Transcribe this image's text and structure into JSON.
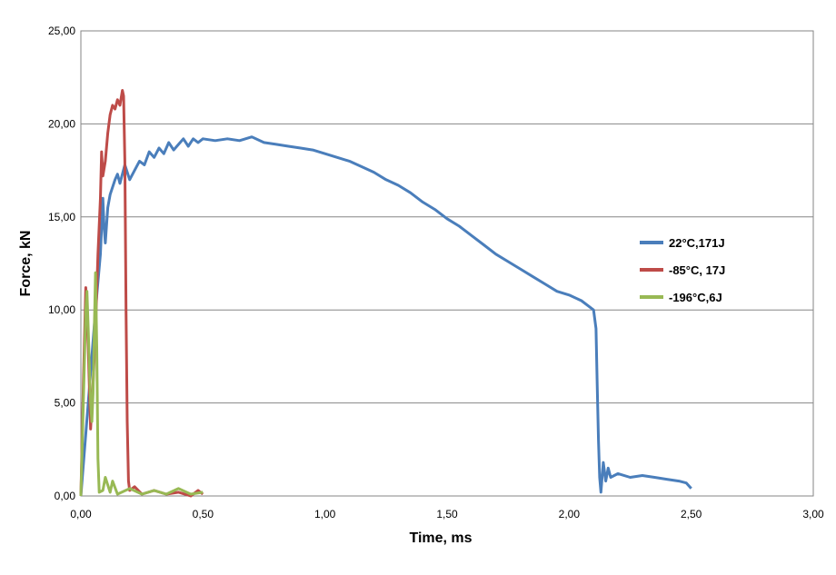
{
  "chart_data": {
    "type": "line",
    "xlabel": "Time, ms",
    "ylabel": "Force, kN",
    "xlim": [
      0,
      3
    ],
    "ylim": [
      0,
      25
    ],
    "x_ticks": [
      "0,00",
      "0,50",
      "1,00",
      "1,50",
      "2,00",
      "2,50",
      "3,00"
    ],
    "y_ticks": [
      "0,00",
      "5,00",
      "10,00",
      "15,00",
      "20,00",
      "25,00"
    ],
    "grid": "horizontal",
    "legend_position": "right",
    "series": [
      {
        "name": "22°C,171J",
        "color": "#4a7ebb",
        "points": [
          [
            0.0,
            0.0
          ],
          [
            0.03,
            5.0
          ],
          [
            0.06,
            10.0
          ],
          [
            0.08,
            13.0
          ],
          [
            0.09,
            16.0
          ],
          [
            0.095,
            14.5
          ],
          [
            0.1,
            13.6
          ],
          [
            0.11,
            15.5
          ],
          [
            0.12,
            16.2
          ],
          [
            0.14,
            17.0
          ],
          [
            0.15,
            17.3
          ],
          [
            0.16,
            16.8
          ],
          [
            0.18,
            17.8
          ],
          [
            0.2,
            17.0
          ],
          [
            0.22,
            17.5
          ],
          [
            0.24,
            18.0
          ],
          [
            0.26,
            17.8
          ],
          [
            0.28,
            18.5
          ],
          [
            0.3,
            18.2
          ],
          [
            0.32,
            18.7
          ],
          [
            0.34,
            18.4
          ],
          [
            0.36,
            19.0
          ],
          [
            0.38,
            18.6
          ],
          [
            0.4,
            18.9
          ],
          [
            0.42,
            19.2
          ],
          [
            0.44,
            18.8
          ],
          [
            0.46,
            19.2
          ],
          [
            0.48,
            19.0
          ],
          [
            0.5,
            19.2
          ],
          [
            0.55,
            19.1
          ],
          [
            0.6,
            19.2
          ],
          [
            0.65,
            19.1
          ],
          [
            0.7,
            19.3
          ],
          [
            0.75,
            19.0
          ],
          [
            0.8,
            18.9
          ],
          [
            0.85,
            18.8
          ],
          [
            0.9,
            18.7
          ],
          [
            0.95,
            18.6
          ],
          [
            1.0,
            18.4
          ],
          [
            1.05,
            18.2
          ],
          [
            1.1,
            18.0
          ],
          [
            1.15,
            17.7
          ],
          [
            1.2,
            17.4
          ],
          [
            1.25,
            17.0
          ],
          [
            1.3,
            16.7
          ],
          [
            1.35,
            16.3
          ],
          [
            1.4,
            15.8
          ],
          [
            1.45,
            15.4
          ],
          [
            1.5,
            14.9
          ],
          [
            1.55,
            14.5
          ],
          [
            1.6,
            14.0
          ],
          [
            1.65,
            13.5
          ],
          [
            1.7,
            13.0
          ],
          [
            1.75,
            12.6
          ],
          [
            1.8,
            12.2
          ],
          [
            1.85,
            11.8
          ],
          [
            1.9,
            11.4
          ],
          [
            1.95,
            11.0
          ],
          [
            2.0,
            10.8
          ],
          [
            2.05,
            10.5
          ],
          [
            2.08,
            10.2
          ],
          [
            2.1,
            10.0
          ],
          [
            2.11,
            9.0
          ],
          [
            2.115,
            6.0
          ],
          [
            2.12,
            3.0
          ],
          [
            2.125,
            1.0
          ],
          [
            2.13,
            0.2
          ],
          [
            2.14,
            1.8
          ],
          [
            2.15,
            0.8
          ],
          [
            2.16,
            1.5
          ],
          [
            2.17,
            1.0
          ],
          [
            2.2,
            1.2
          ],
          [
            2.25,
            1.0
          ],
          [
            2.3,
            1.1
          ],
          [
            2.35,
            1.0
          ],
          [
            2.4,
            0.9
          ],
          [
            2.45,
            0.8
          ],
          [
            2.48,
            0.7
          ],
          [
            2.5,
            0.4
          ]
        ]
      },
      {
        "name": "-85°C, 17J",
        "color": "#be4b48",
        "points": [
          [
            0.0,
            0.0
          ],
          [
            0.01,
            6.0
          ],
          [
            0.02,
            11.2
          ],
          [
            0.03,
            8.0
          ],
          [
            0.04,
            3.6
          ],
          [
            0.05,
            6.0
          ],
          [
            0.06,
            9.0
          ],
          [
            0.07,
            13.0
          ],
          [
            0.08,
            16.0
          ],
          [
            0.085,
            18.5
          ],
          [
            0.09,
            17.2
          ],
          [
            0.1,
            18.0
          ],
          [
            0.11,
            19.5
          ],
          [
            0.12,
            20.5
          ],
          [
            0.13,
            21.0
          ],
          [
            0.14,
            20.8
          ],
          [
            0.15,
            21.3
          ],
          [
            0.16,
            21.0
          ],
          [
            0.17,
            21.8
          ],
          [
            0.175,
            21.5
          ],
          [
            0.18,
            18.0
          ],
          [
            0.185,
            10.0
          ],
          [
            0.19,
            4.0
          ],
          [
            0.195,
            0.8
          ],
          [
            0.2,
            0.3
          ],
          [
            0.22,
            0.5
          ],
          [
            0.25,
            0.1
          ],
          [
            0.3,
            0.3
          ],
          [
            0.35,
            0.1
          ],
          [
            0.4,
            0.2
          ],
          [
            0.45,
            0.0
          ],
          [
            0.48,
            0.3
          ],
          [
            0.5,
            0.1
          ]
        ]
      },
      {
        "name": "-196°C,6J",
        "color": "#98b954",
        "points": [
          [
            0.0,
            0.0
          ],
          [
            0.01,
            5.0
          ],
          [
            0.02,
            10.0
          ],
          [
            0.025,
            11.0
          ],
          [
            0.03,
            9.0
          ],
          [
            0.035,
            7.0
          ],
          [
            0.04,
            5.0
          ],
          [
            0.045,
            4.0
          ],
          [
            0.05,
            5.5
          ],
          [
            0.055,
            9.0
          ],
          [
            0.06,
            12.0
          ],
          [
            0.065,
            8.0
          ],
          [
            0.07,
            2.0
          ],
          [
            0.075,
            0.2
          ],
          [
            0.09,
            0.3
          ],
          [
            0.1,
            1.0
          ],
          [
            0.12,
            0.2
          ],
          [
            0.13,
            0.8
          ],
          [
            0.15,
            0.1
          ],
          [
            0.2,
            0.4
          ],
          [
            0.25,
            0.1
          ],
          [
            0.3,
            0.3
          ],
          [
            0.35,
            0.1
          ],
          [
            0.4,
            0.4
          ],
          [
            0.45,
            0.1
          ],
          [
            0.5,
            0.2
          ]
        ]
      }
    ]
  }
}
